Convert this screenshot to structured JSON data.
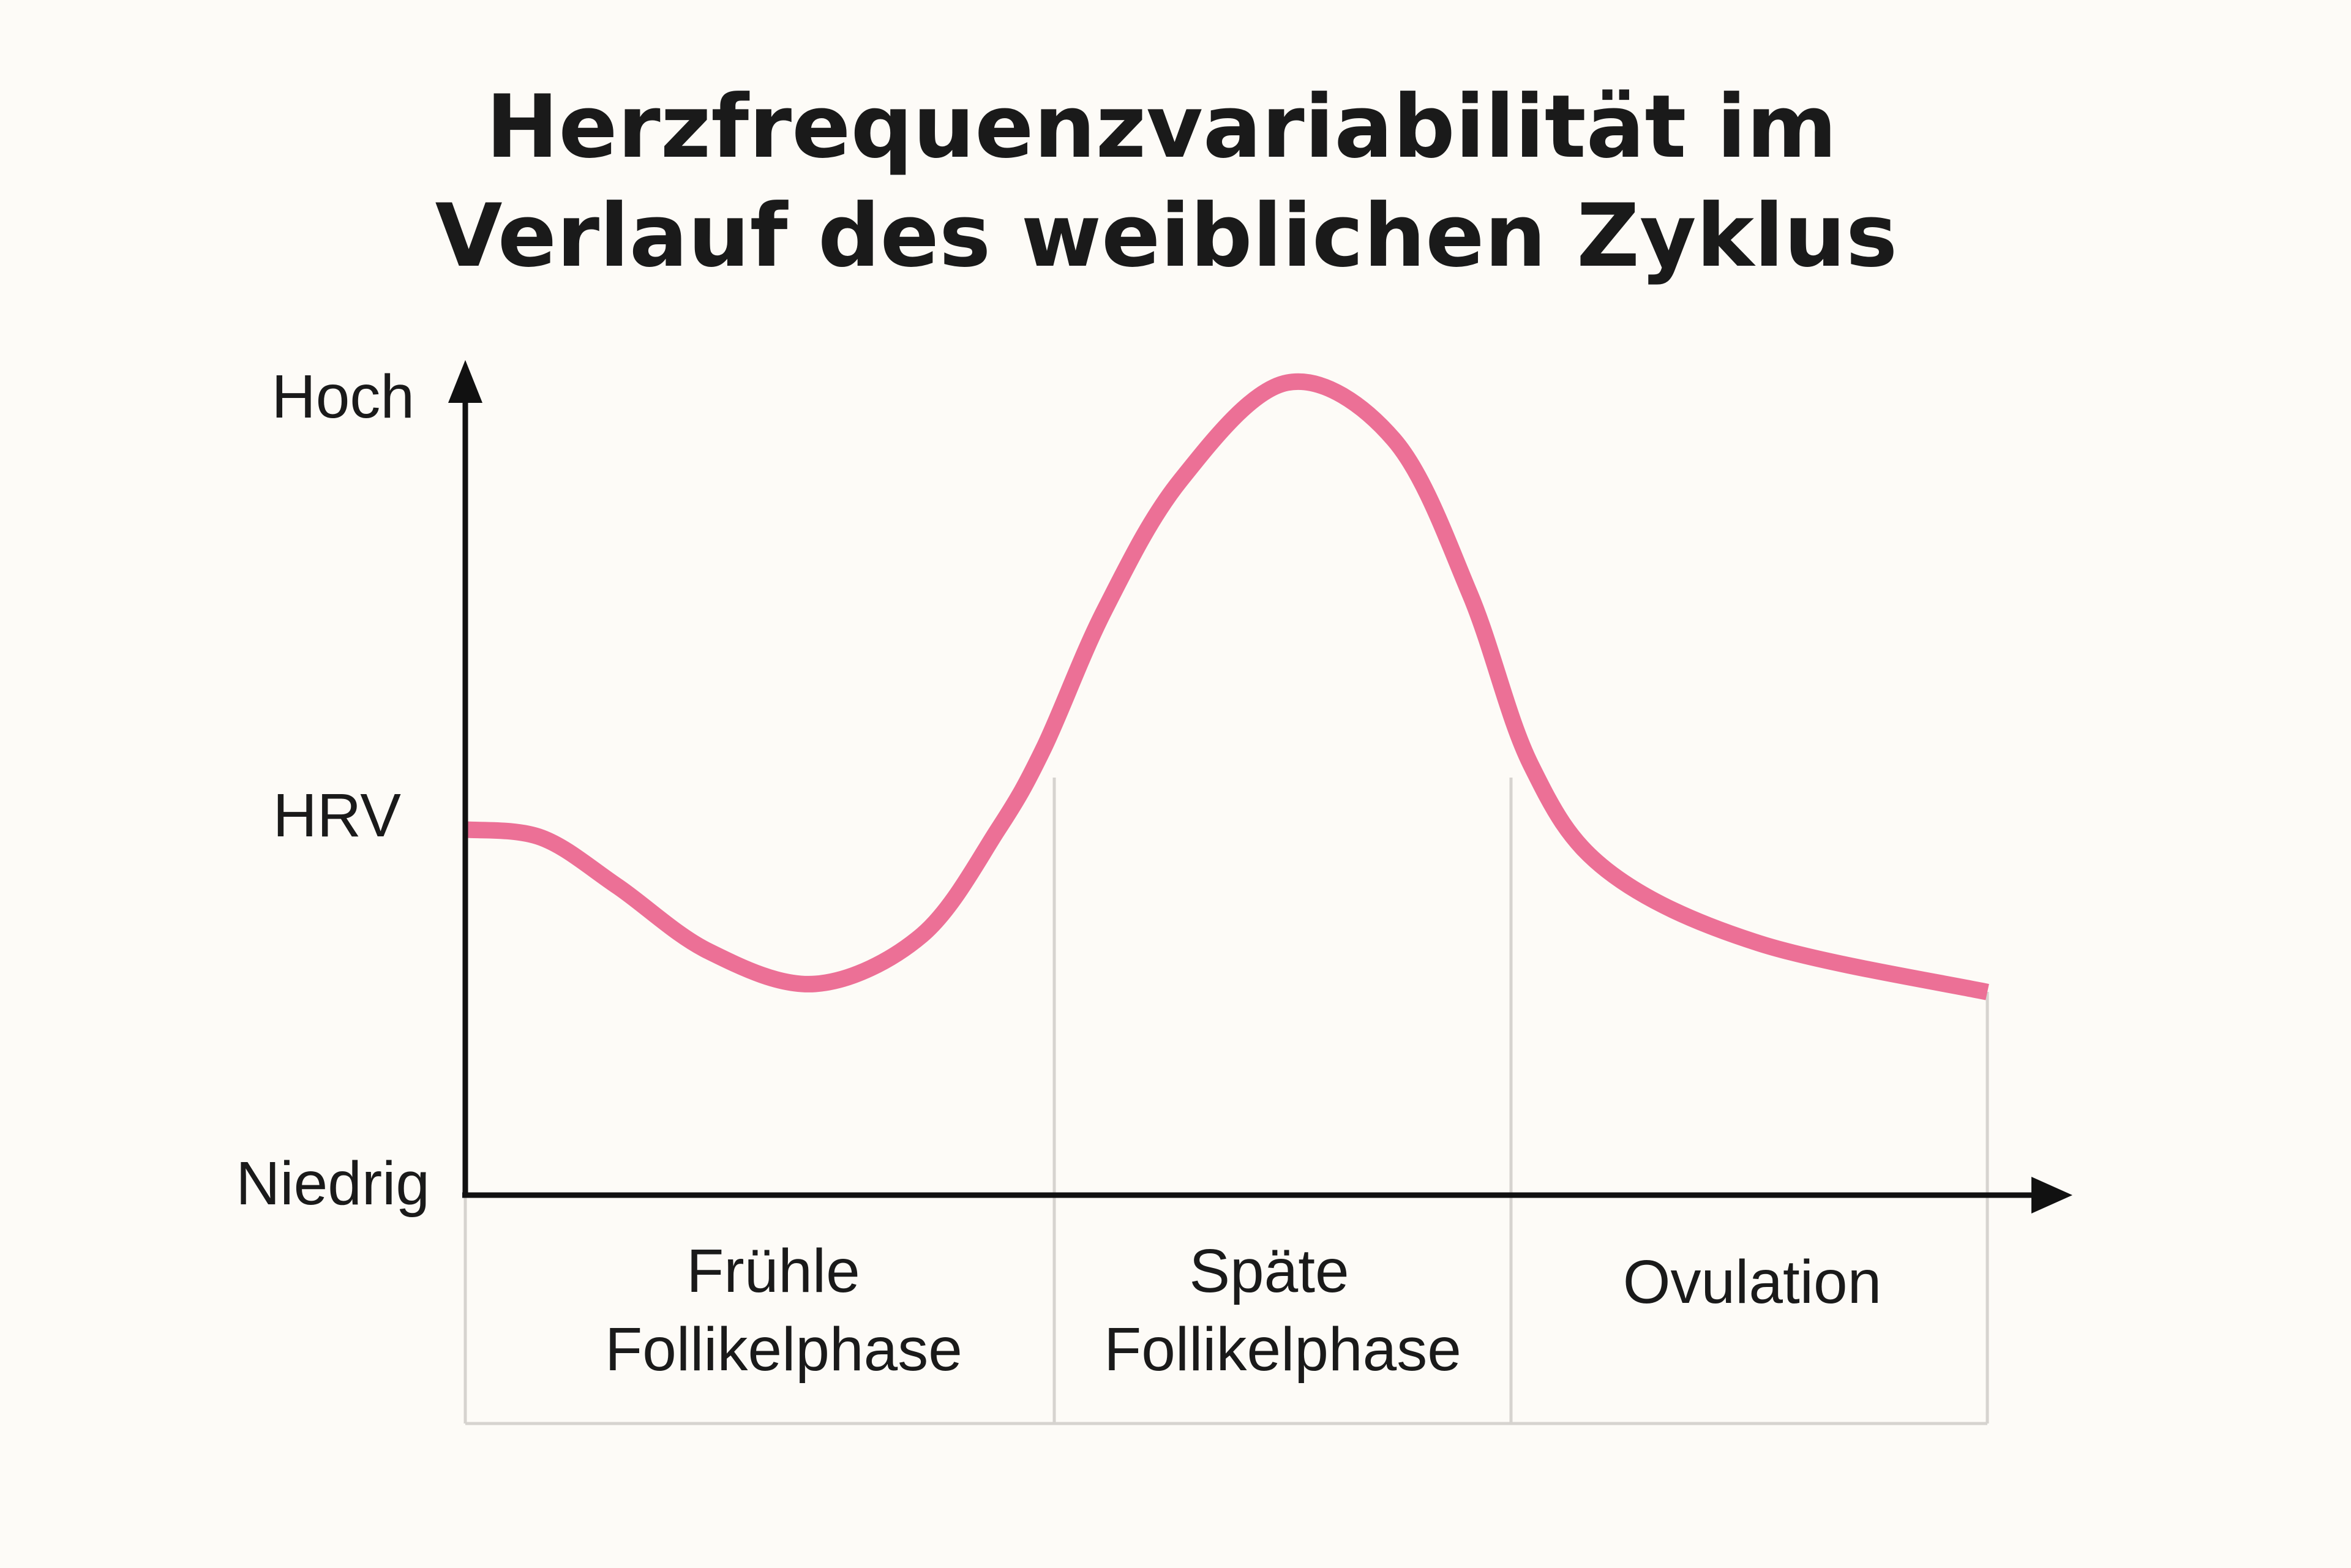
{
  "chart_data": {
    "type": "line",
    "title_lines": [
      "Herzfrequenzvariabilität im",
      "Verlauf des weiblichen Zyklus"
    ],
    "y_axis": {
      "label": "HRV",
      "high_label": "Hoch",
      "low_label": "Niedrig",
      "ylim": [
        0,
        1
      ]
    },
    "x_axis": {
      "xlim": [
        0,
        1
      ]
    },
    "phases": [
      {
        "lines": [
          "Frühle",
          "Follikelphase"
        ]
      },
      {
        "lines": [
          "Späte",
          "Follikelphase"
        ]
      },
      {
        "lines": [
          "Ovulation"
        ]
      }
    ],
    "series": [
      {
        "color": "#ec7096",
        "points": [
          [
            0.0,
            0.45
          ],
          [
            0.05,
            0.44
          ],
          [
            0.1,
            0.38
          ],
          [
            0.16,
            0.3
          ],
          [
            0.23,
            0.26
          ],
          [
            0.3,
            0.32
          ],
          [
            0.35,
            0.45
          ],
          [
            0.38,
            0.55
          ],
          [
            0.42,
            0.72
          ],
          [
            0.47,
            0.88
          ],
          [
            0.54,
            1.0
          ],
          [
            0.61,
            0.93
          ],
          [
            0.66,
            0.74
          ],
          [
            0.7,
            0.53
          ],
          [
            0.75,
            0.4
          ],
          [
            0.85,
            0.31
          ],
          [
            1.0,
            0.25
          ]
        ]
      }
    ],
    "grid": false,
    "legend": "none"
  },
  "colors": {
    "background": "#fdfbf7",
    "axis": "#111111",
    "line": "#ec7096",
    "divider": "#d6d3cf"
  }
}
